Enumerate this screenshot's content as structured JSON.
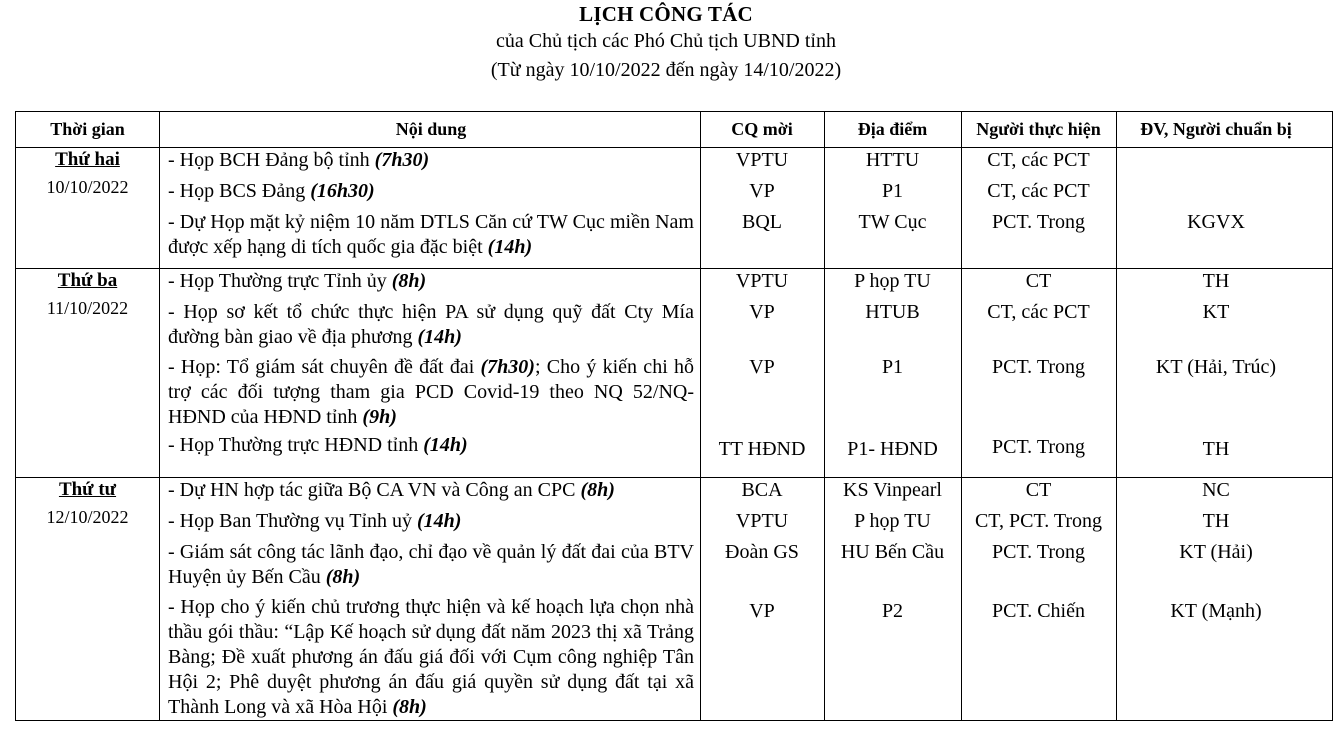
{
  "header": {
    "title": "LỊCH  CÔNG TÁC",
    "subtitle": "của Chủ tịch các Phó Chủ tịch UBND tỉnh",
    "daterange": "(Từ ngày 10/10/2022 đến ngày 14/10/2022)"
  },
  "columns": {
    "time": "Thời gian",
    "content": "Nội dung",
    "org": "CQ mời",
    "place": "Địa điểm",
    "exec": "Người thực hiện",
    "prep": "ĐV, Người chuẩn bị"
  },
  "days": [
    {
      "day": "Thứ hai",
      "date": "10/10/2022",
      "items": [
        {
          "text": "- Họp BCH Đảng bộ tỉnh ",
          "time": "(7h30)",
          "org": "VPTU",
          "place": "HTTU",
          "exec": "CT, các PCT",
          "prep": ""
        },
        {
          "text": "- Họp BCS Đảng ",
          "time": "(16h30)",
          "org": "VP",
          "place": "P1",
          "exec": "CT, các PCT",
          "prep": ""
        },
        {
          "text": "- Dự Họp mặt kỷ niệm 10 năm DTLS Căn cứ TW Cục miền Nam được xếp hạng di tích quốc gia đặc biệt ",
          "time": "(14h)",
          "org": "BQL",
          "place": "TW Cục",
          "exec": "PCT. Trong",
          "prep": "KGVX"
        }
      ]
    },
    {
      "day": "Thứ ba",
      "date": "11/10/2022",
      "items": [
        {
          "text": "- Họp Thường trực Tỉnh ủy ",
          "time": "(8h)",
          "org": "VPTU",
          "place": "P họp TU",
          "exec": "CT",
          "prep": "TH"
        },
        {
          "text": "- Họp sơ kết tổ chức thực hiện PA sử dụng quỹ đất Cty Mía đường bàn giao về địa phương ",
          "time": "(14h)",
          "org": "VP",
          "place": "HTUB",
          "exec": "CT, các PCT",
          "prep": "KT"
        },
        {
          "text": "- Họp: Tổ giám sát chuyên đề đất đai ",
          "time": "(7h30)",
          "text2": "; Cho ý kiến chi hỗ trợ các đối tượng tham gia PCD Covid-19 theo NQ 52/NQ-HĐND của HĐND tỉnh ",
          "time2": "(9h)",
          "org": "VP",
          "place": "P1",
          "exec": "PCT. Trong",
          "prep": "KT (Hải, Trúc)"
        },
        {
          "text": " - Họp Thường trực HĐND tỉnh ",
          "time": "(14h)",
          "org": "TT HĐND",
          "place": "P1- HĐND",
          "exec": "PCT. Trong",
          "prep": "TH"
        }
      ]
    },
    {
      "day": "Thứ tư",
      "date": "12/10/2022",
      "items": [
        {
          "text": "- Dự HN hợp tác giữa Bộ CA VN và Công an CPC ",
          "time": "(8h)",
          "org": "BCA",
          "place": "KS Vinpearl",
          "exec": "CT",
          "prep": "NC"
        },
        {
          "text": "- Họp Ban Thường vụ Tỉnh uỷ ",
          "time": "(14h)",
          "org": "VPTU",
          "place": "P họp TU",
          "exec": "CT, PCT. Trong",
          "prep": "TH"
        },
        {
          "text": "- Giám sát công tác lãnh đạo, chỉ đạo về quản lý đất đai của BTV Huyện ủy Bến Cầu ",
          "time": "(8h)",
          "org": "Đoàn GS",
          "place": "HU Bến Cầu",
          "exec": "PCT. Trong",
          "prep": "KT (Hải)"
        },
        {
          "text": "- Họp cho ý kiến chủ trương thực hiện và kế hoạch lựa chọn nhà thầu gói thầu: “Lập Kế hoạch sử dụng đất năm 2023 thị xã Trảng Bàng; Đề xuất phương án đấu giá đối với Cụm công nghiệp Tân Hội 2; Phê duyệt phương án đấu giá quyền sử dụng đất tại xã Thành Long và xã Hòa Hội ",
          "time": "(8h)",
          "org": "VP",
          "place": "P2",
          "exec": "PCT. Chiến",
          "prep": "KT (Mạnh)"
        }
      ]
    }
  ]
}
